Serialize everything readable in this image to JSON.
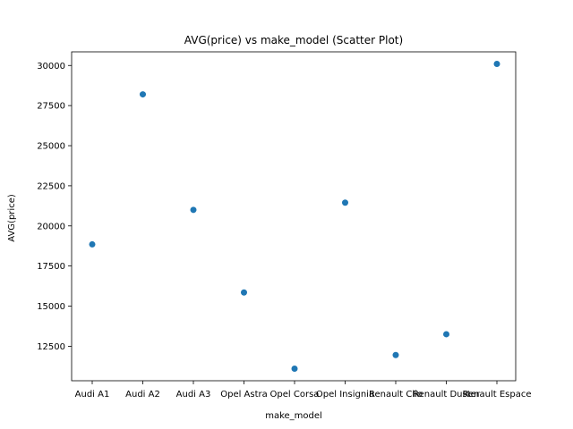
{
  "chart_data": {
    "type": "scatter",
    "title": "AVG(price) vs make_model (Scatter Plot)",
    "xlabel": "make_model",
    "ylabel": "AVG(price)",
    "categories": [
      "Audi A1",
      "Audi A2",
      "Audi A3",
      "Opel Astra",
      "Opel Corsa",
      "Opel Insignia",
      "Renault Clio",
      "Renault Duster",
      "Renault Espace"
    ],
    "values": [
      18850,
      28200,
      21000,
      15850,
      11100,
      21450,
      11950,
      13250,
      30100
    ],
    "yticks": [
      12500,
      15000,
      17500,
      20000,
      22500,
      25000,
      27500,
      30000
    ],
    "ylim": [
      10350,
      30850
    ],
    "marker_color": "#1f77b4",
    "grid": false,
    "legend": "none"
  }
}
